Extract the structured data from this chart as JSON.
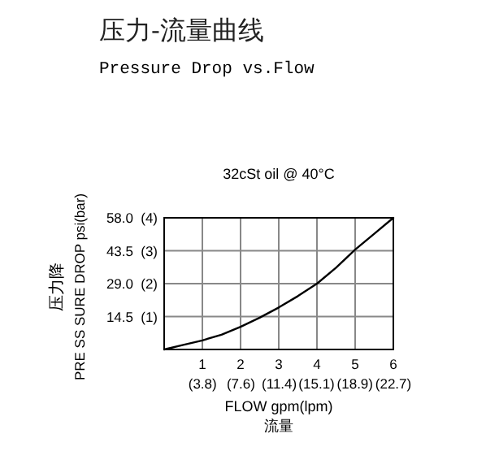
{
  "chart_data": {
    "type": "line",
    "title": "压力-流量曲线",
    "subtitle": "Pressure Drop vs.Flow",
    "annotations": [
      "32cSt oil @ 40°C"
    ],
    "xlabel": "FLOW  gpm(lpm)\n流量",
    "ylabel": "压力降\nPRE SS SURE DROP     psi(bar)",
    "x": [
      0,
      0.5,
      1,
      1.5,
      2,
      2.5,
      3,
      3.5,
      4,
      4.5,
      5,
      5.5,
      6
    ],
    "series": [
      {
        "color": "#000000",
        "values": [
          0,
          2,
          4,
          6.5,
          10,
          14,
          18.5,
          23.5,
          29,
          36,
          44,
          51,
          58
        ]
      }
    ],
    "xlim": [
      0,
      6
    ],
    "ylim": [
      0,
      58
    ],
    "xticks": [
      1,
      2,
      3,
      4,
      5,
      6
    ],
    "x2lim": [
      0,
      22.7
    ],
    "x2ticks": [
      {
        "value": 3.8,
        "label": "(3.8)"
      },
      {
        "value": 7.6,
        "label": "(7.6)"
      },
      {
        "value": 11.4,
        "label": "(11.4)"
      },
      {
        "value": 15.1,
        "label": "(15.1)"
      },
      {
        "value": 18.9,
        "label": "(18.9)"
      },
      {
        "value": 22.7,
        "label": "(22.7)"
      }
    ],
    "yticks": [
      14.5,
      {
        "value": 29,
        "label": "29.0"
      },
      43.5,
      {
        "value": 58,
        "label": "58.0"
      }
    ],
    "y2lim": [
      0,
      4
    ],
    "y2ticks": [
      {
        "value": 1,
        "label": "(1)"
      },
      {
        "value": 2,
        "label": "(2)"
      },
      {
        "value": 3,
        "label": "(3)"
      },
      {
        "value": 4,
        "label": "(4)"
      }
    ],
    "grid": true,
    "marker": "none",
    "line_style": "solid"
  }
}
